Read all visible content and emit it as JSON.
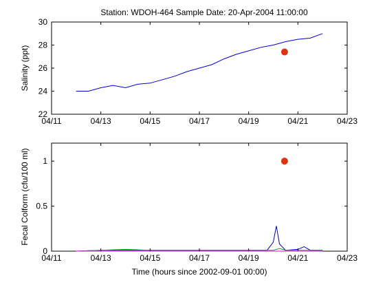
{
  "figure": {
    "title": "Station: WDOH-464  Sample Date: 20-Apr-2004 11:00:00"
  },
  "chart_data": [
    {
      "type": "line",
      "title": "",
      "xlabel": "",
      "ylabel": "Salinity (ppt)",
      "xlim": [
        "2004-04-11",
        "2004-04-23"
      ],
      "ylim": [
        22,
        30
      ],
      "x_ticks": [
        "04/11",
        "04/13",
        "04/15",
        "04/17",
        "04/19",
        "04/21",
        "04/23"
      ],
      "y_ticks": [
        22,
        24,
        26,
        28,
        30
      ],
      "grid": false,
      "series": [
        {
          "color": "#0000cc",
          "style": "line",
          "points": [
            [
              "2004-04-12",
              24.0
            ],
            [
              "2004-04-12 12:00",
              24.0
            ],
            [
              "2004-04-13",
              24.3
            ],
            [
              "2004-04-13 12:00",
              24.5
            ],
            [
              "2004-04-14",
              24.3
            ],
            [
              "2004-04-14 12:00",
              24.6
            ],
            [
              "2004-04-15",
              24.7
            ],
            [
              "2004-04-15 12:00",
              25.0
            ],
            [
              "2004-04-16",
              25.3
            ],
            [
              "2004-04-16 12:00",
              25.7
            ],
            [
              "2004-04-17",
              26.0
            ],
            [
              "2004-04-17 12:00",
              26.3
            ],
            [
              "2004-04-18",
              26.8
            ],
            [
              "2004-04-18 12:00",
              27.2
            ],
            [
              "2004-04-19",
              27.5
            ],
            [
              "2004-04-19 12:00",
              27.8
            ],
            [
              "2004-04-20",
              28.0
            ],
            [
              "2004-04-20 12:00",
              28.3
            ],
            [
              "2004-04-21",
              28.5
            ],
            [
              "2004-04-21 12:00",
              28.6
            ],
            [
              "2004-04-22",
              29.0
            ]
          ]
        },
        {
          "color": "#dd3311",
          "style": "marker",
          "points": [
            [
              "2004-04-20 11:00",
              27.4
            ]
          ]
        }
      ]
    },
    {
      "type": "line",
      "title": "",
      "xlabel": "Time (hours since 2002-09-01 00:00)",
      "ylabel": "Fecal Colform (cfu/100 ml)",
      "xlim": [
        "2004-04-11",
        "2004-04-23"
      ],
      "ylim": [
        0,
        1.2
      ],
      "x_ticks": [
        "04/11",
        "04/13",
        "04/15",
        "04/17",
        "04/19",
        "04/21",
        "04/23"
      ],
      "y_ticks": [
        0,
        0.5,
        1
      ],
      "grid": false,
      "series": [
        {
          "color": "#0000cc",
          "style": "line",
          "points": [
            [
              "2004-04-12",
              0.0
            ],
            [
              "2004-04-13",
              0.01
            ],
            [
              "2004-04-14",
              0.01
            ],
            [
              "2004-04-15",
              0.01
            ],
            [
              "2004-04-16",
              0.01
            ],
            [
              "2004-04-17",
              0.01
            ],
            [
              "2004-04-18",
              0.01
            ],
            [
              "2004-04-19",
              0.01
            ],
            [
              "2004-04-19 18:00",
              0.01
            ],
            [
              "2004-04-20",
              0.1
            ],
            [
              "2004-04-20 03:00",
              0.28
            ],
            [
              "2004-04-20 06:00",
              0.08
            ],
            [
              "2004-04-20 12:00",
              0.01
            ],
            [
              "2004-04-21",
              0.02
            ],
            [
              "2004-04-21 06:00",
              0.05
            ],
            [
              "2004-04-21 12:00",
              0.01
            ],
            [
              "2004-04-22",
              0.01
            ]
          ]
        },
        {
          "color": "#00aa00",
          "style": "line",
          "points": [
            [
              "2004-04-12",
              0.0
            ],
            [
              "2004-04-13",
              0.01
            ],
            [
              "2004-04-14",
              0.02
            ],
            [
              "2004-04-15",
              0.01
            ],
            [
              "2004-04-16",
              0.01
            ],
            [
              "2004-04-17",
              0.01
            ],
            [
              "2004-04-18",
              0.01
            ],
            [
              "2004-04-19",
              0.01
            ],
            [
              "2004-04-20",
              0.01
            ],
            [
              "2004-04-20 06:00",
              0.03
            ],
            [
              "2004-04-20 12:00",
              0.01
            ],
            [
              "2004-04-21",
              0.01
            ],
            [
              "2004-04-22",
              0.01
            ]
          ]
        },
        {
          "color": "#ff00ff",
          "style": "line",
          "points": [
            [
              "2004-04-12",
              0.0
            ],
            [
              "2004-04-14",
              0.0
            ],
            [
              "2004-04-16",
              0.0
            ],
            [
              "2004-04-18",
              0.0
            ],
            [
              "2004-04-20",
              0.0
            ],
            [
              "2004-04-22",
              0.0
            ]
          ]
        },
        {
          "color": "#dd3311",
          "style": "marker",
          "points": [
            [
              "2004-04-20 11:00",
              1.0
            ]
          ]
        }
      ]
    }
  ]
}
